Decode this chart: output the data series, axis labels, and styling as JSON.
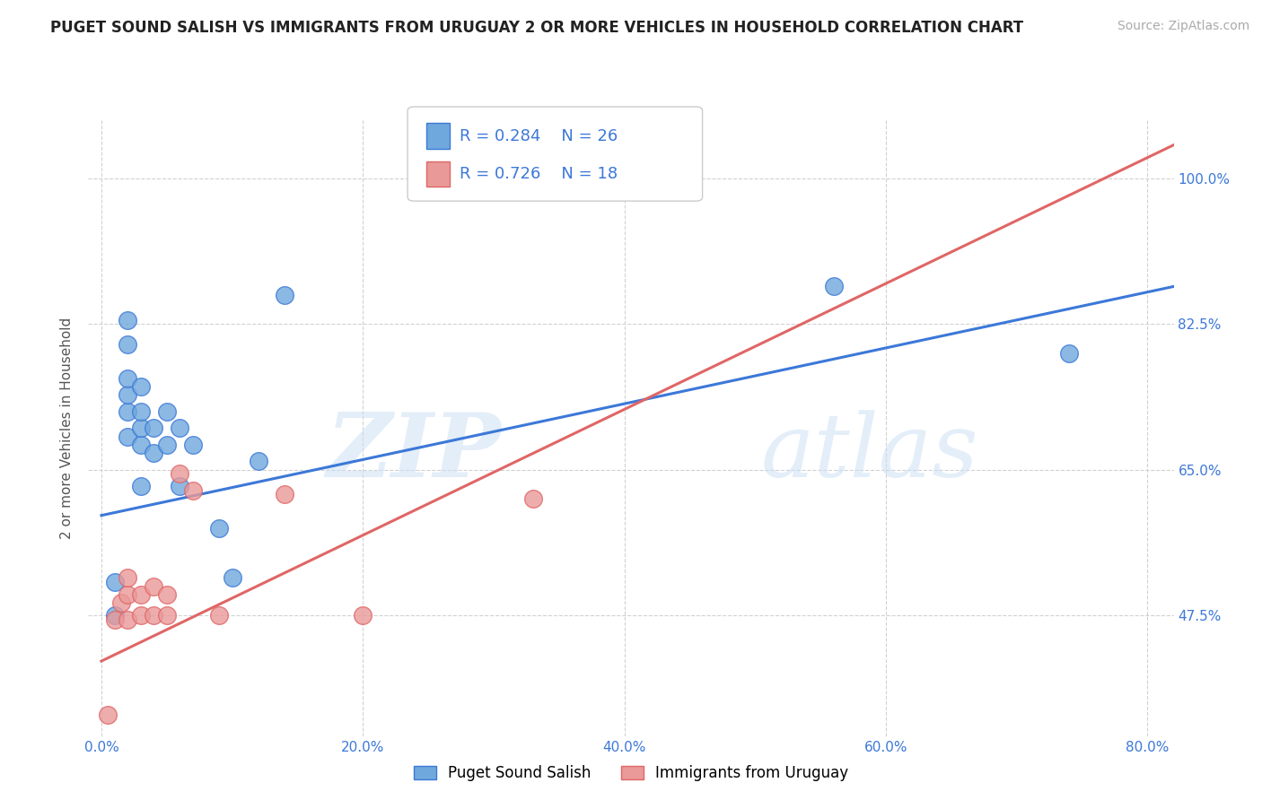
{
  "title": "PUGET SOUND SALISH VS IMMIGRANTS FROM URUGUAY 2 OR MORE VEHICLES IN HOUSEHOLD CORRELATION CHART",
  "source": "Source: ZipAtlas.com",
  "ylabel": "2 or more Vehicles in Household",
  "xlabel": "",
  "xlim": [
    -0.01,
    0.82
  ],
  "ylim": [
    0.33,
    1.07
  ],
  "xtick_labels": [
    "0.0%",
    "20.0%",
    "40.0%",
    "60.0%",
    "80.0%"
  ],
  "xtick_values": [
    0.0,
    0.2,
    0.4,
    0.6,
    0.8
  ],
  "ytick_labels": [
    "47.5%",
    "65.0%",
    "82.5%",
    "100.0%"
  ],
  "ytick_values": [
    0.475,
    0.65,
    0.825,
    1.0
  ],
  "legend_labels": [
    "Puget Sound Salish",
    "Immigrants from Uruguay"
  ],
  "blue_R": "R = 0.284",
  "blue_N": "N = 26",
  "pink_R": "R = 0.726",
  "pink_N": "N = 18",
  "blue_color": "#6fa8dc",
  "pink_color": "#ea9999",
  "blue_line_color": "#3c78d8",
  "pink_line_color": "#e06666",
  "watermark_zip": "ZIP",
  "watermark_atlas": "atlas",
  "blue_scatter_x": [
    0.01,
    0.01,
    0.02,
    0.02,
    0.02,
    0.02,
    0.02,
    0.02,
    0.03,
    0.03,
    0.03,
    0.03,
    0.03,
    0.04,
    0.04,
    0.05,
    0.05,
    0.06,
    0.06,
    0.07,
    0.09,
    0.1,
    0.12,
    0.14,
    0.56,
    0.74
  ],
  "blue_scatter_y": [
    0.475,
    0.515,
    0.69,
    0.72,
    0.74,
    0.76,
    0.8,
    0.83,
    0.63,
    0.68,
    0.7,
    0.72,
    0.75,
    0.67,
    0.7,
    0.68,
    0.72,
    0.63,
    0.7,
    0.68,
    0.58,
    0.52,
    0.66,
    0.86,
    0.87,
    0.79
  ],
  "pink_scatter_x": [
    0.005,
    0.01,
    0.015,
    0.02,
    0.02,
    0.02,
    0.03,
    0.03,
    0.04,
    0.04,
    0.05,
    0.05,
    0.06,
    0.07,
    0.09,
    0.14,
    0.2,
    0.33
  ],
  "pink_scatter_y": [
    0.355,
    0.47,
    0.49,
    0.47,
    0.5,
    0.52,
    0.475,
    0.5,
    0.475,
    0.51,
    0.475,
    0.5,
    0.645,
    0.625,
    0.475,
    0.62,
    0.475,
    0.615
  ],
  "blue_trend_x": [
    0.0,
    0.82
  ],
  "blue_trend_y": [
    0.595,
    0.87
  ],
  "pink_trend_x": [
    0.0,
    0.82
  ],
  "pink_trend_y": [
    0.42,
    1.04
  ],
  "background_color": "#ffffff",
  "grid_color": "#cccccc",
  "title_fontsize": 12,
  "axis_fontsize": 11,
  "tick_fontsize": 11,
  "legend_fontsize": 12,
  "source_fontsize": 10
}
